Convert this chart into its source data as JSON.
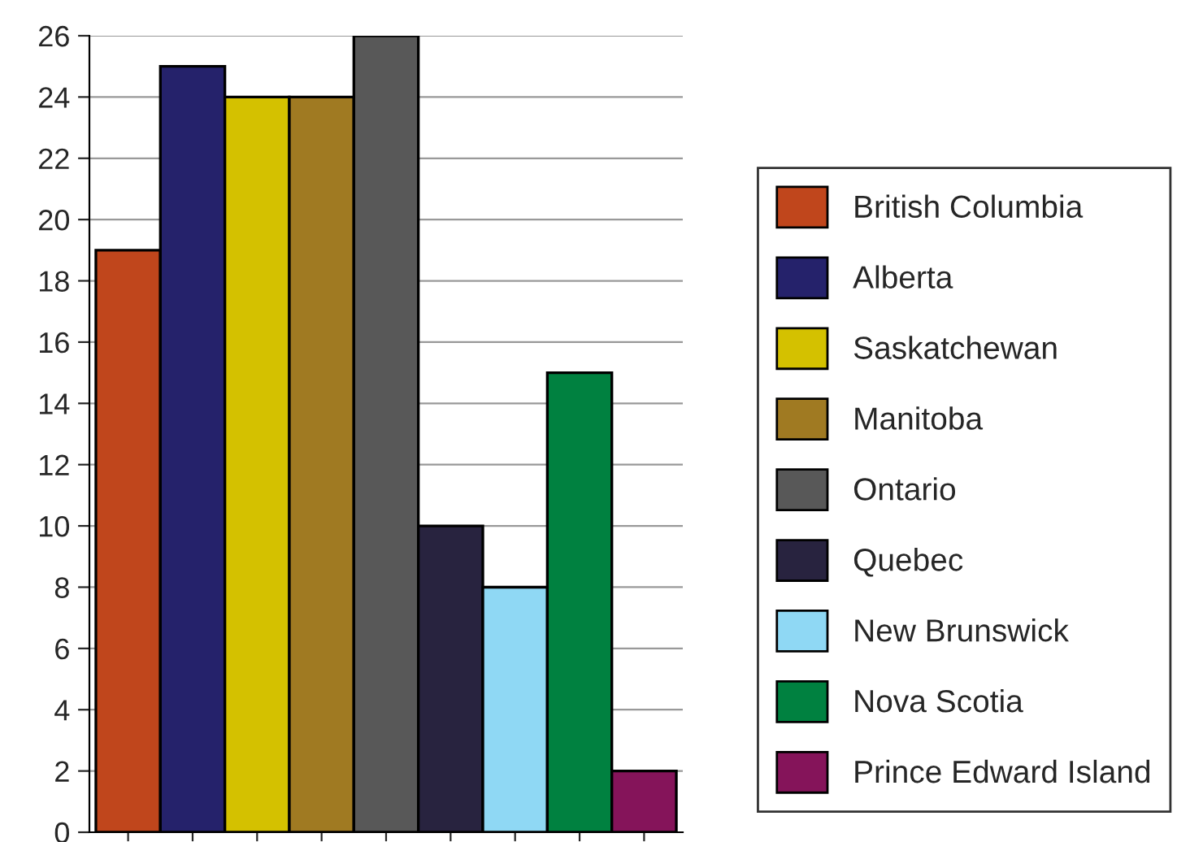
{
  "chart_data": {
    "type": "bar",
    "categories": [
      null,
      null,
      null,
      null,
      null,
      null,
      null,
      null,
      null
    ],
    "series": [
      {
        "name": "British Columbia",
        "color": "#c0461c",
        "values": [
          19,
          null,
          null,
          null,
          null,
          null,
          null,
          null,
          null
        ]
      },
      {
        "name": "Alberta",
        "color": "#25226b",
        "values": [
          null,
          25,
          null,
          null,
          null,
          null,
          null,
          null,
          null
        ]
      },
      {
        "name": "Saskatchewan",
        "color": "#d4c100",
        "values": [
          null,
          null,
          24,
          null,
          null,
          null,
          null,
          null,
          null
        ]
      },
      {
        "name": "Manitoba",
        "color": "#a07a22",
        "values": [
          null,
          null,
          null,
          24,
          null,
          null,
          null,
          null,
          null
        ]
      },
      {
        "name": "Ontario",
        "color": "#585858",
        "values": [
          null,
          null,
          null,
          null,
          26,
          null,
          null,
          null,
          null
        ]
      },
      {
        "name": "Quebec",
        "color": "#28233f",
        "values": [
          null,
          null,
          null,
          null,
          null,
          10,
          null,
          null,
          null
        ]
      },
      {
        "name": "New Brunswick",
        "color": "#8fd8f4",
        "values": [
          null,
          null,
          null,
          null,
          null,
          null,
          8,
          null,
          null
        ]
      },
      {
        "name": "Nova Scotia",
        "color": "#008140",
        "values": [
          null,
          null,
          null,
          null,
          null,
          null,
          null,
          15,
          null
        ]
      },
      {
        "name": "Prince Edward Island",
        "color": "#85145a",
        "values": [
          null,
          null,
          null,
          null,
          null,
          null,
          null,
          null,
          2
        ]
      }
    ],
    "ylim": [
      0,
      26
    ],
    "yticks": [
      0,
      2,
      4,
      6,
      8,
      10,
      12,
      14,
      16,
      18,
      20,
      22,
      24,
      26
    ],
    "grid": "y",
    "legend": "right"
  }
}
